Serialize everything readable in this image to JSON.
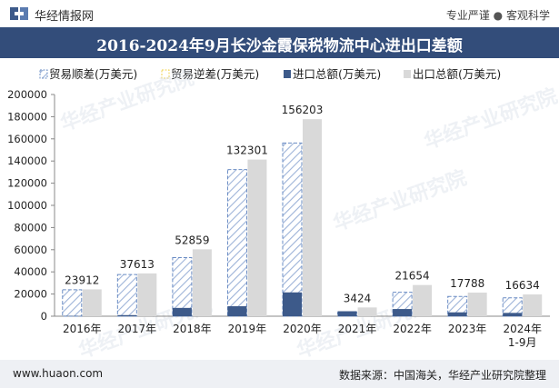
{
  "header": {
    "brand": "华经情报网",
    "tagline_1": "专业严谨",
    "tagline_sep": "●",
    "tagline_2": "客观科学"
  },
  "chart_data": {
    "type": "bar",
    "title": "2016-2024年9月长沙金霞保税物流中心进出口差额",
    "categories": [
      "2016年",
      "2017年",
      "2018年",
      "2019年",
      "2020年",
      "2021年",
      "2022年",
      "2023年",
      "2024年\n1-9月"
    ],
    "series": [
      {
        "name": "贸易顺差(万美元)",
        "values": [
          23912,
          37613,
          52859,
          132301,
          156203,
          3424,
          21654,
          17788,
          16634
        ]
      },
      {
        "name": "贸易逆差(万美元)",
        "values": [
          0,
          0,
          0,
          0,
          0,
          0,
          0,
          0,
          0
        ]
      },
      {
        "name": "进口总额(万美元)",
        "values": [
          300,
          1000,
          7500,
          9000,
          21500,
          4500,
          6500,
          3500,
          3000
        ]
      },
      {
        "name": "出口总额(万美元)",
        "values": [
          24212,
          38613,
          60359,
          141301,
          177703,
          7924,
          28154,
          21288,
          19634
        ]
      }
    ],
    "data_labels": [
      23912,
      37613,
      52859,
      132301,
      156203,
      3424,
      21654,
      17788,
      16634
    ],
    "y_ticks": [
      0,
      20000,
      40000,
      60000,
      80000,
      100000,
      120000,
      140000,
      160000,
      180000,
      200000
    ],
    "ylim": [
      0,
      200000
    ],
    "legend_position": "top",
    "colors": {
      "surplus": "#6a8cc4",
      "deficit": "#f2d34e",
      "import": "#3d5a8a",
      "export": "#d9d9d9"
    }
  },
  "watermark": "华经产业研究院",
  "footer": {
    "site": "www.huaon.com",
    "source_label": "数据来源：",
    "source_text": "中国海关，华经产业研究院整理"
  }
}
